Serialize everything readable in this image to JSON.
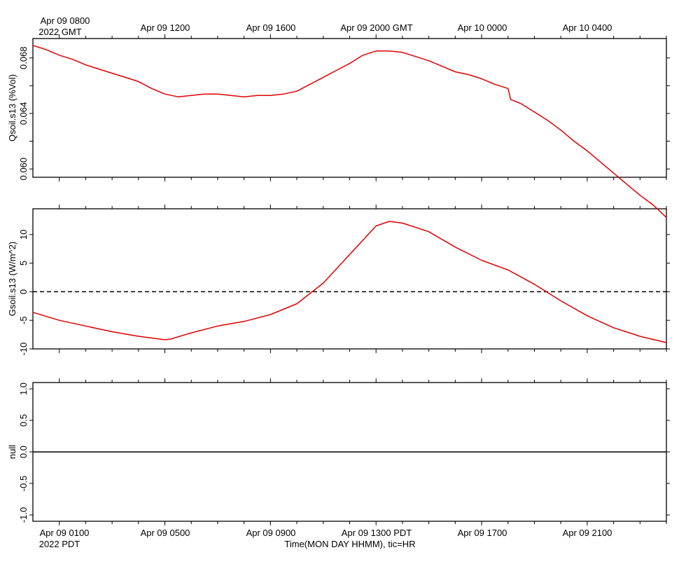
{
  "top_axis": {
    "first_label": [
      "Apr 09 0800",
      "2022 GMT"
    ],
    "labels": [
      "Apr 09 1200",
      "Apr 09 1600",
      "Apr 09 2000 GMT",
      "Apr 10 0000",
      "Apr 10 0400"
    ]
  },
  "bottom_axis": {
    "first_label": [
      "Apr 09 0100",
      "2022 PDT"
    ],
    "labels": [
      "Apr 09 0500",
      "Apr 09 0900",
      "Apr 09 1300 PDT",
      "Apr 09 1700",
      "Apr 09 2100"
    ],
    "xlabel": "Time(MON DAY HHMM), tic=HR"
  },
  "chart_data": [
    {
      "type": "line",
      "ylabel": "Qsoil.s13 (%Vol)",
      "ylim": [
        0.0594,
        0.0694
      ],
      "yticks": [
        "0.060",
        "0.064",
        "0.068"
      ],
      "xlim": [
        0,
        24
      ],
      "x_units": "hours after Apr 09 0000 PDT",
      "line_color": "#e00000",
      "series": [
        {
          "x": [
            0,
            0.5,
            1,
            1.5,
            2,
            2.5,
            3,
            3.5,
            4,
            4.5,
            5,
            5.5,
            6,
            6.5,
            7,
            7.5,
            8,
            8.5,
            9,
            9.5,
            10,
            10.5,
            11,
            11.5,
            12,
            12.5,
            13,
            13.5,
            14,
            14.5,
            15,
            15.5,
            16,
            16.5,
            17,
            17.5,
            18,
            18.1,
            18.5,
            19,
            19.5,
            20,
            20.5,
            21,
            21.5,
            22,
            22.5,
            23,
            23.5,
            24
          ],
          "y": [
            0.0689,
            0.0686,
            0.0682,
            0.0679,
            0.0675,
            0.0672,
            0.0669,
            0.0666,
            0.0663,
            0.0658,
            0.0654,
            0.0652,
            0.0653,
            0.0654,
            0.0654,
            0.0653,
            0.0652,
            0.0653,
            0.0653,
            0.0654,
            0.0656,
            0.0661,
            0.0666,
            0.0671,
            0.0676,
            0.0682,
            0.0685,
            0.0685,
            0.0684,
            0.0681,
            0.0678,
            0.0674,
            0.067,
            0.0668,
            0.0665,
            0.0661,
            0.0658,
            0.065,
            0.0647,
            0.0641,
            0.0635,
            0.0628,
            0.062,
            0.0613,
            0.0605,
            0.0597,
            0.0589,
            0.0581,
            0.0574,
            0.0565
          ]
        }
      ]
    },
    {
      "type": "line",
      "ylabel": "Gsoil.s13 (W/m^2)",
      "ylim": [
        -10,
        14.5
      ],
      "yticks": [
        "-10",
        "-5",
        "0",
        "5",
        "10"
      ],
      "xlim": [
        0,
        24
      ],
      "x_units": "hours after Apr 09 0000 PDT",
      "line_color": "#e00000",
      "zero_line": "dashed",
      "series": [
        {
          "x": [
            0,
            1,
            2,
            3,
            4,
            5,
            5.2,
            6,
            7,
            8,
            9,
            10,
            11,
            12,
            13,
            13.5,
            14,
            15,
            16,
            17,
            18,
            19,
            20,
            21,
            22,
            23,
            24
          ],
          "y": [
            -3.6,
            -5.0,
            -6.0,
            -7.0,
            -7.8,
            -8.4,
            -8.3,
            -7.2,
            -6.0,
            -5.2,
            -4.0,
            -2.1,
            1.5,
            6.5,
            11.5,
            12.3,
            12.0,
            10.5,
            7.8,
            5.5,
            3.8,
            1.3,
            -1.6,
            -4.2,
            -6.3,
            -7.8,
            -8.9
          ]
        }
      ]
    },
    {
      "type": "line",
      "ylabel": "null",
      "ylim": [
        -1.1,
        1.1
      ],
      "yticks": [
        "-1.0",
        "-0.5",
        "0.0",
        "0.5",
        "1.0"
      ],
      "xlim": [
        0,
        24
      ],
      "x_units": "hours after Apr 09 0000 PDT",
      "line_color": "#000000",
      "series": [
        {
          "x": [
            0,
            24
          ],
          "y": [
            0,
            0
          ]
        }
      ]
    }
  ]
}
